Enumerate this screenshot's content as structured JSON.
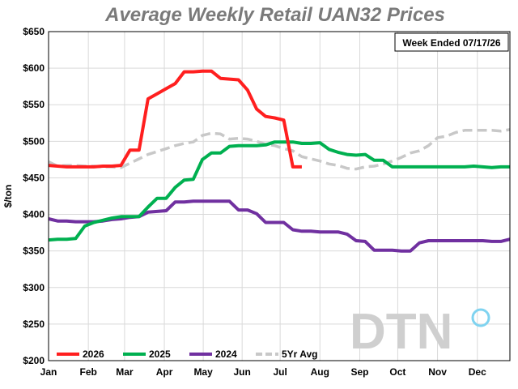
{
  "chart_data": {
    "type": "line",
    "title": "Average Weekly Retail UAN32 Prices",
    "ylabel": "$/ton",
    "xlabel": "",
    "ylim": [
      200,
      650
    ],
    "yticks": [
      200,
      250,
      300,
      350,
      400,
      450,
      500,
      550,
      600,
      650
    ],
    "ytick_labels": [
      "$200",
      "$250",
      "$300",
      "$350",
      "$400",
      "$450",
      "$500",
      "$550",
      "$600",
      "$650"
    ],
    "x_range": [
      1,
      52
    ],
    "x_ticks": [
      {
        "week": 1,
        "label": "Jan"
      },
      {
        "week": 5.4,
        "label": "Feb"
      },
      {
        "week": 9.4,
        "label": "Mar"
      },
      {
        "week": 13.8,
        "label": "Apr"
      },
      {
        "week": 18.1,
        "label": "May"
      },
      {
        "week": 22.4,
        "label": "Jun"
      },
      {
        "week": 26.6,
        "label": "Jul"
      },
      {
        "week": 31,
        "label": "Aug"
      },
      {
        "week": 35.4,
        "label": "Sep"
      },
      {
        "week": 39.6,
        "label": "Oct"
      },
      {
        "week": 44,
        "label": "Nov"
      },
      {
        "week": 48.4,
        "label": "Dec"
      }
    ],
    "grid": true,
    "legend_position": "bottom-left",
    "annotation": "Week Ended 07/17/26",
    "series": [
      {
        "name": "2026",
        "color": "#ff1f1f",
        "dashed": false,
        "x": [
          1,
          2,
          3,
          4,
          5,
          6,
          7,
          8,
          9,
          10,
          11,
          12,
          13,
          14,
          15,
          16,
          17,
          18,
          19,
          20,
          21,
          22,
          23,
          24,
          25,
          26,
          27,
          28,
          29
        ],
        "values": [
          467,
          466,
          465,
          465,
          465,
          465,
          466,
          466,
          467,
          488,
          488,
          558,
          565,
          572,
          579,
          595,
          595,
          596,
          596,
          586,
          585,
          584,
          570,
          544,
          534,
          532,
          529,
          465,
          465
        ]
      },
      {
        "name": "2025",
        "color": "#00b050",
        "dashed": false,
        "x": [
          1,
          2,
          3,
          4,
          5,
          6,
          7,
          8,
          9,
          10,
          11,
          12,
          13,
          14,
          15,
          16,
          17,
          18,
          19,
          20,
          21,
          22,
          23,
          24,
          25,
          26,
          27,
          28,
          29,
          30,
          31,
          32,
          33,
          34,
          35,
          36,
          37,
          38,
          39,
          40,
          41,
          42,
          43,
          44,
          45,
          46,
          47,
          48,
          49,
          50,
          51,
          52
        ],
        "values": [
          365,
          366,
          366,
          367,
          384,
          389,
          392,
          395,
          397,
          397,
          397,
          410,
          422,
          422,
          437,
          447,
          448,
          475,
          484,
          484,
          493,
          494,
          494,
          494,
          495,
          499,
          499,
          499,
          497,
          497,
          498,
          489,
          485,
          482,
          481,
          482,
          474,
          474,
          465,
          465,
          465,
          465,
          465,
          465,
          465,
          465,
          465,
          466,
          465,
          464,
          465,
          465
        ]
      },
      {
        "name": "2024",
        "color": "#7030a0",
        "dashed": false,
        "x": [
          1,
          2,
          3,
          4,
          5,
          6,
          7,
          8,
          9,
          10,
          11,
          12,
          13,
          14,
          15,
          16,
          17,
          18,
          19,
          20,
          21,
          22,
          23,
          24,
          25,
          26,
          27,
          28,
          29,
          30,
          31,
          32,
          33,
          34,
          35,
          36,
          37,
          38,
          39,
          40,
          41,
          42,
          43,
          44,
          45,
          46,
          47,
          48,
          49,
          50,
          51,
          52
        ],
        "values": [
          394,
          391,
          391,
          390,
          390,
          390,
          391,
          393,
          394,
          396,
          397,
          403,
          404,
          405,
          417,
          417,
          418,
          418,
          418,
          418,
          418,
          406,
          406,
          401,
          389,
          389,
          389,
          379,
          377,
          377,
          376,
          376,
          376,
          373,
          364,
          363,
          351,
          351,
          351,
          350,
          350,
          361,
          364,
          364,
          364,
          364,
          364,
          364,
          364,
          363,
          363,
          366
        ]
      },
      {
        "name": "5Yr Avg",
        "color": "#c8c8c8",
        "dashed": true,
        "x": [
          1,
          2,
          3,
          4,
          5,
          6,
          7,
          8,
          9,
          10,
          11,
          12,
          13,
          14,
          15,
          16,
          17,
          18,
          19,
          20,
          21,
          22,
          23,
          24,
          25,
          26,
          27,
          28,
          29,
          30,
          31,
          32,
          33,
          34,
          35,
          36,
          37,
          38,
          39,
          40,
          41,
          42,
          43,
          44,
          45,
          46,
          47,
          48,
          49,
          50,
          51,
          52
        ],
        "values": [
          472,
          466,
          467,
          467,
          466,
          466,
          465,
          465,
          464,
          470,
          476,
          482,
          486,
          490,
          494,
          497,
          499,
          508,
          511,
          510,
          503,
          504,
          503,
          500,
          496,
          494,
          490,
          487,
          479,
          476,
          473,
          469,
          467,
          463,
          462,
          465,
          466,
          469,
          473,
          478,
          484,
          487,
          494,
          505,
          507,
          512,
          515,
          515,
          515,
          515,
          514,
          516
        ]
      }
    ]
  }
}
